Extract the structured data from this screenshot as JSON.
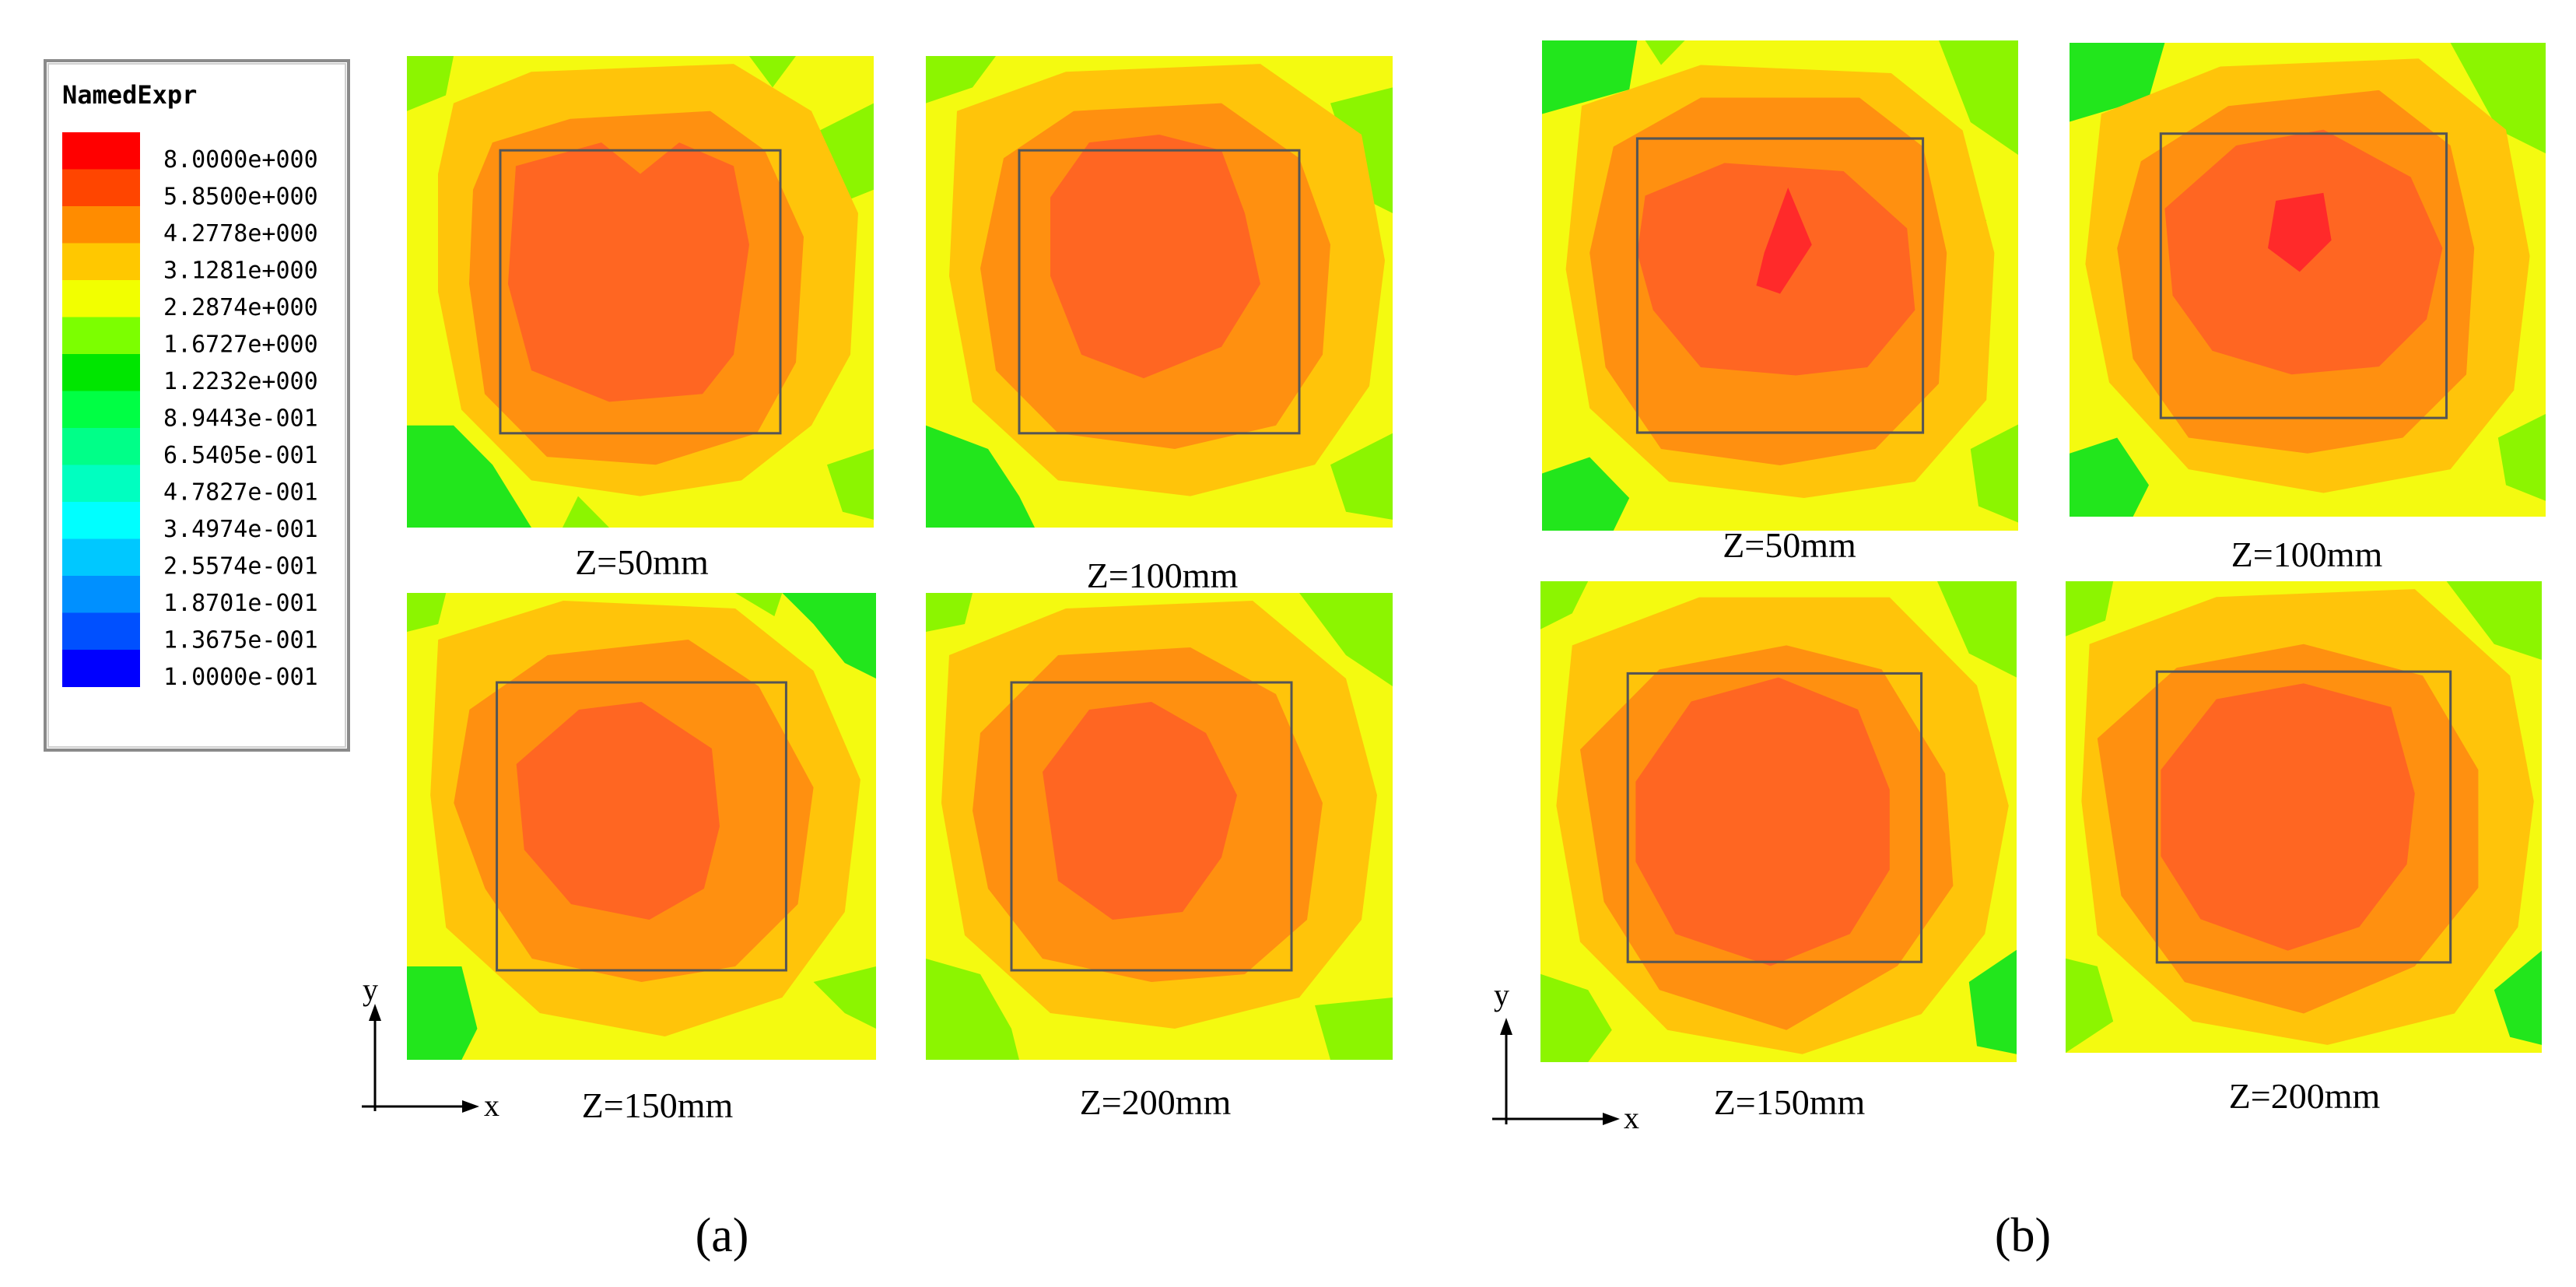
{
  "legend": {
    "title": "NamedExpr",
    "entries": [
      {
        "label": "8.0000e+000",
        "color": "#ff0000"
      },
      {
        "label": "5.8500e+000",
        "color": "#ff4500"
      },
      {
        "label": "4.2778e+000",
        "color": "#ff8c00"
      },
      {
        "label": "3.1281e+000",
        "color": "#ffc800"
      },
      {
        "label": "2.2874e+000",
        "color": "#f2ff00"
      },
      {
        "label": "1.6727e+000",
        "color": "#7cff00"
      },
      {
        "label": "1.2232e+000",
        "color": "#00e600"
      },
      {
        "label": "8.9443e-001",
        "color": "#00ff44"
      },
      {
        "label": "6.5405e-001",
        "color": "#00ff88"
      },
      {
        "label": "4.7827e-001",
        "color": "#00ffc0"
      },
      {
        "label": "3.4974e-001",
        "color": "#00ffff"
      },
      {
        "label": "2.5574e-001",
        "color": "#00c8ff"
      },
      {
        "label": "1.8701e-001",
        "color": "#0090ff"
      },
      {
        "label": "1.3675e-001",
        "color": "#0050ff"
      },
      {
        "label": "1.0000e-001",
        "color": "#0000ff"
      }
    ]
  },
  "panels": {
    "a": {
      "label": "(a)",
      "maps": [
        {
          "caption": "Z=50mm"
        },
        {
          "caption": "Z=100mm"
        },
        {
          "caption": "Z=150mm"
        },
        {
          "caption": "Z=200mm"
        }
      ]
    },
    "b": {
      "label": "(b)",
      "maps": [
        {
          "caption": "Z=50mm"
        },
        {
          "caption": "Z=100mm"
        },
        {
          "caption": "Z=150mm"
        },
        {
          "caption": "Z=200mm"
        }
      ]
    }
  },
  "axes": {
    "x": "x",
    "y": "y"
  },
  "colors": {
    "peak": "#ff2a2a",
    "core": "#ff6622",
    "ring": "#ff9010",
    "mid": "#ffc40a",
    "outer": "#f4fa10",
    "edge": "#8cf500",
    "corner": "#22e61c",
    "frame": "#555555"
  }
}
